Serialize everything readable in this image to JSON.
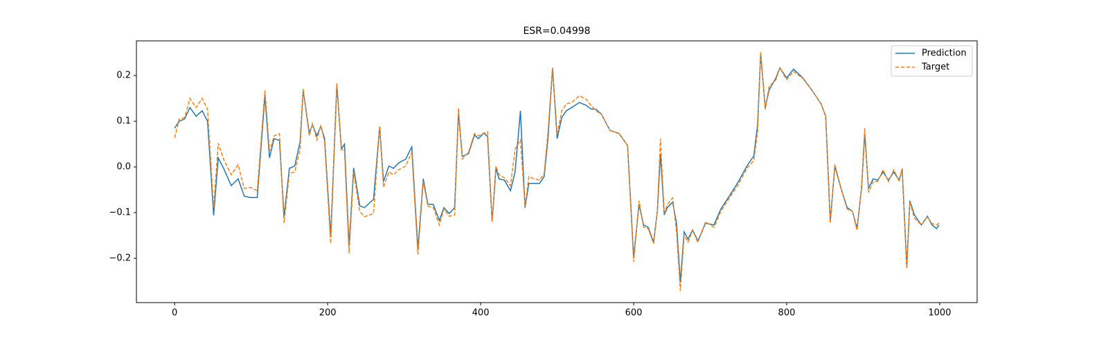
{
  "chart_data": {
    "type": "line",
    "title": "ESR=0.04998",
    "x": [
      0,
      6,
      13,
      20,
      28,
      36,
      43,
      51,
      57,
      64,
      74,
      83,
      91,
      99,
      108,
      118,
      124,
      130,
      137,
      143,
      150,
      157,
      164,
      168,
      176,
      180,
      186,
      191,
      196,
      204,
      212,
      218,
      222,
      228,
      234,
      242,
      248,
      260,
      268,
      273,
      280,
      286,
      293,
      302,
      310,
      318,
      325,
      331,
      338,
      346,
      352,
      359,
      366,
      371,
      376,
      384,
      392,
      397,
      404,
      409,
      415,
      420,
      424,
      431,
      439,
      445,
      452,
      458,
      463,
      470,
      477,
      483,
      488,
      494,
      500,
      506,
      512,
      519,
      529,
      538,
      544,
      551,
      558,
      569,
      581,
      592,
      600,
      607,
      613,
      619,
      626,
      631,
      635,
      640,
      644,
      651,
      656,
      661,
      666,
      671,
      677,
      684,
      694,
      705,
      714,
      725,
      737,
      748,
      757,
      762,
      766,
      772,
      777,
      786,
      791,
      800,
      809,
      821,
      833,
      845,
      851,
      857,
      863,
      871,
      879,
      886,
      892,
      898,
      902,
      907,
      913,
      919,
      926,
      933,
      940,
      947,
      951,
      957,
      961,
      967,
      976,
      984,
      990,
      996,
      999
    ],
    "series": [
      {
        "name": "Prediction",
        "color": "#1f77b4",
        "dash": false,
        "values": [
          0.085,
          0.1,
          0.105,
          0.13,
          0.111,
          0.123,
          0.1,
          -0.106,
          0.02,
          -0.003,
          -0.041,
          -0.026,
          -0.064,
          -0.067,
          -0.067,
          0.156,
          0.02,
          0.062,
          0.058,
          -0.109,
          -0.003,
          0.002,
          0.055,
          0.168,
          0.074,
          0.092,
          0.068,
          0.089,
          0.062,
          -0.153,
          0.18,
          0.039,
          0.05,
          -0.173,
          -0.002,
          -0.085,
          -0.089,
          -0.071,
          0.088,
          -0.032,
          0.002,
          -0.003,
          0.009,
          0.017,
          0.044,
          -0.18,
          -0.026,
          -0.082,
          -0.082,
          -0.117,
          -0.089,
          -0.102,
          -0.089,
          0.118,
          0.023,
          0.029,
          0.07,
          0.062,
          0.074,
          0.067,
          -0.12,
          -0.003,
          -0.026,
          -0.029,
          -0.052,
          -0.011,
          0.123,
          -0.089,
          -0.036,
          -0.036,
          -0.036,
          -0.021,
          0.062,
          0.217,
          0.062,
          0.108,
          0.123,
          0.13,
          0.141,
          0.135,
          0.127,
          0.126,
          0.115,
          0.08,
          0.073,
          0.047,
          -0.198,
          -0.082,
          -0.127,
          -0.132,
          -0.165,
          -0.097,
          0.029,
          -0.105,
          -0.089,
          -0.077,
          -0.123,
          -0.253,
          -0.142,
          -0.158,
          -0.138,
          -0.162,
          -0.123,
          -0.127,
          -0.092,
          -0.064,
          -0.032,
          0.002,
          0.024,
          0.092,
          0.248,
          0.13,
          0.168,
          0.195,
          0.217,
          0.195,
          0.214,
          0.195,
          0.168,
          0.138,
          0.111,
          -0.12,
          0.002,
          -0.047,
          -0.089,
          -0.097,
          -0.135,
          -0.044,
          0.073,
          -0.047,
          -0.026,
          -0.029,
          -0.011,
          -0.029,
          -0.011,
          -0.029,
          -0.006,
          -0.218,
          -0.074,
          -0.105,
          -0.127,
          -0.108,
          -0.127,
          -0.135,
          -0.127
        ]
      },
      {
        "name": "Target",
        "color": "#ff7f0e",
        "dash": true,
        "values": [
          0.064,
          0.105,
          0.108,
          0.15,
          0.13,
          0.15,
          0.126,
          -0.089,
          0.052,
          0.017,
          -0.017,
          0.005,
          -0.047,
          -0.045,
          -0.052,
          0.168,
          0.035,
          0.068,
          0.073,
          -0.123,
          -0.014,
          -0.011,
          0.039,
          0.171,
          0.068,
          0.095,
          0.059,
          0.092,
          0.055,
          -0.168,
          0.183,
          0.039,
          0.035,
          -0.189,
          -0.011,
          -0.097,
          -0.109,
          -0.102,
          0.089,
          -0.044,
          -0.011,
          -0.017,
          -0.006,
          0.002,
          0.032,
          -0.192,
          -0.032,
          -0.086,
          -0.089,
          -0.127,
          -0.092,
          -0.108,
          -0.105,
          0.129,
          0.017,
          0.032,
          0.073,
          0.068,
          0.074,
          0.077,
          -0.12,
          0.002,
          -0.017,
          -0.024,
          -0.041,
          0.039,
          0.059,
          -0.086,
          -0.021,
          -0.026,
          -0.029,
          -0.014,
          0.077,
          0.217,
          0.07,
          0.123,
          0.138,
          0.141,
          0.156,
          0.148,
          0.135,
          0.123,
          0.115,
          0.08,
          0.073,
          0.047,
          -0.208,
          -0.074,
          -0.132,
          -0.135,
          -0.168,
          -0.097,
          0.062,
          -0.102,
          -0.082,
          -0.068,
          -0.142,
          -0.271,
          -0.15,
          -0.165,
          -0.139,
          -0.165,
          -0.12,
          -0.132,
          -0.097,
          -0.068,
          -0.038,
          -0.003,
          0.014,
          0.077,
          0.252,
          0.126,
          0.176,
          0.191,
          0.217,
          0.191,
          0.209,
          0.194,
          0.168,
          0.138,
          0.111,
          -0.123,
          0.006,
          -0.047,
          -0.092,
          -0.097,
          -0.139,
          -0.044,
          0.085,
          -0.056,
          -0.032,
          -0.032,
          -0.006,
          -0.032,
          -0.006,
          -0.032,
          -0.003,
          -0.223,
          -0.077,
          -0.112,
          -0.127,
          -0.109,
          -0.124,
          -0.127,
          -0.123
        ]
      }
    ],
    "xlim": [
      -49.95,
      1048.95
    ],
    "xticks": [
      0,
      200,
      400,
      600,
      800,
      1000
    ],
    "ylim": [
      -0.297,
      0.276
    ],
    "yticks": [
      {
        "value": -0.2,
        "label": "−0.2"
      },
      {
        "value": -0.1,
        "label": "−0.1"
      },
      {
        "value": 0.0,
        "label": "0.0"
      },
      0.1,
      0.2
    ],
    "grid": false,
    "legend": "upper right"
  }
}
